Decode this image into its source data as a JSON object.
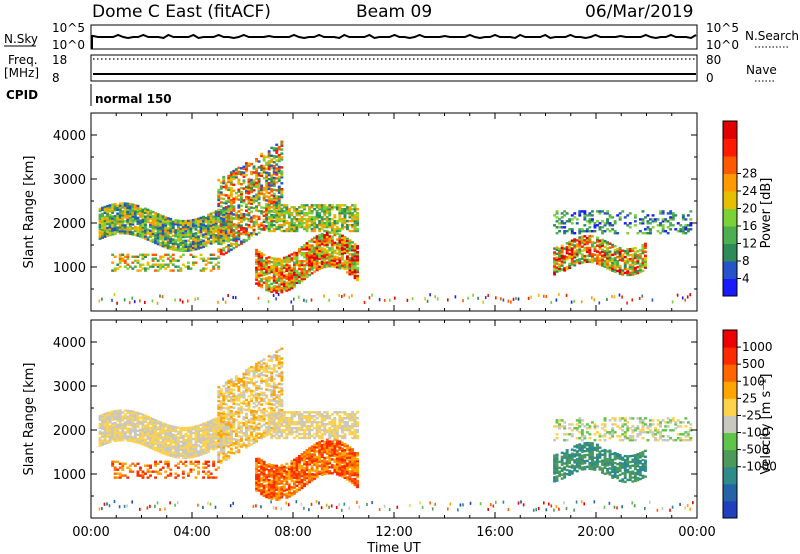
{
  "header": {
    "station": "Dome C East (fitACF)",
    "beam": "Beam 09",
    "date": "06/Mar/2019"
  },
  "top_panels": {
    "nsky_label": "N.Sky",
    "nsky_tick_high": "10^5",
    "nsky_tick_low": "10^0",
    "nsearch_label": "N.Search",
    "nsearch_tick_high": "10^5",
    "nsearch_tick_low": "10^0",
    "freq_label_line1": "Freq.",
    "freq_label_line2": "[MHz]",
    "freq_tick_high": "18",
    "freq_tick_low": "8",
    "nave_label": "Nave",
    "nave_tick_high": "80",
    "nave_tick_low": "0",
    "cpid_label": "CPID",
    "cpid_value": "normal 150"
  },
  "chart_data": [
    {
      "type": "heatmap",
      "panel": "power",
      "ylabel": "Slant Range [km]",
      "ylim": [
        0,
        4500
      ],
      "xlim_hours": [
        0,
        24
      ],
      "yticks": [
        "1000",
        "2000",
        "3000",
        "4000"
      ],
      "xticks": [
        "00:00",
        "04:00",
        "08:00",
        "12:00",
        "16:00",
        "20:00",
        "00:00"
      ],
      "colorbar": {
        "label": "Power [dB]",
        "ticks": [
          "4",
          "8",
          "12",
          "16",
          "20",
          "24",
          "28"
        ],
        "colors": [
          "#1a1aff",
          "#2553c9",
          "#2e8b57",
          "#4caf50",
          "#7bd136",
          "#e6c000",
          "#ff9900",
          "#ff5a00",
          "#ff1a00",
          "#e00000"
        ]
      }
    },
    {
      "type": "heatmap",
      "panel": "velocity",
      "ylabel": "Slant Range [km]",
      "xlabel": "Time UT",
      "ylim": [
        0,
        4500
      ],
      "xlim_hours": [
        0,
        24
      ],
      "yticks": [
        "1000",
        "2000",
        "3000",
        "4000"
      ],
      "xticks": [
        "00:00",
        "04:00",
        "08:00",
        "12:00",
        "16:00",
        "20:00",
        "00:00"
      ],
      "colorbar": {
        "label": "Velocity [m s⁻¹]",
        "ticks": [
          "1000",
          "500",
          "100",
          "25",
          "-25",
          "-100",
          "-500",
          "-1000"
        ],
        "colors": [
          "#1f3fbf",
          "#2563a8",
          "#2f8a8a",
          "#4c9a5a",
          "#5fc44a",
          "#c8c8c0",
          "#ffd24d",
          "#ffa500",
          "#ff6600",
          "#ff2a00",
          "#ee0000"
        ]
      }
    }
  ]
}
